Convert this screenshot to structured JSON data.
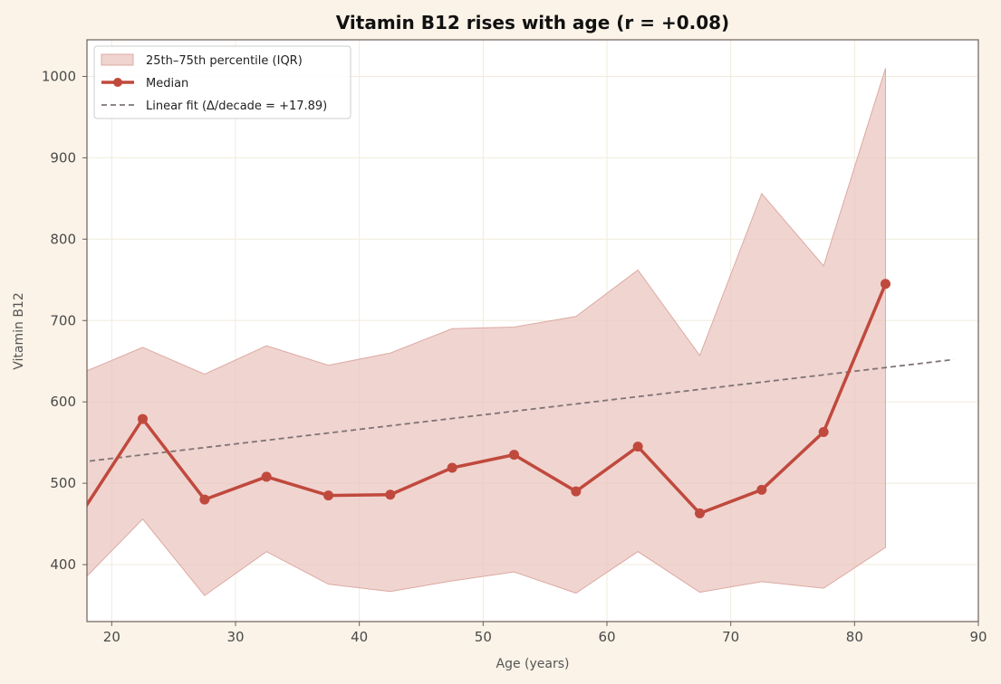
{
  "chart_data": {
    "type": "line",
    "title": "Vitamin B12 rises with age (r = +0.08)",
    "xlabel": "Age (years)",
    "ylabel": "Vitamin B12",
    "xlim": [
      18,
      90
    ],
    "ylim": [
      330,
      1045
    ],
    "xticks": [
      20,
      30,
      40,
      50,
      60,
      70,
      80,
      90
    ],
    "yticks": [
      400,
      500,
      600,
      700,
      800,
      900,
      1000
    ],
    "grid": true,
    "legend_position": "top-left",
    "colors": {
      "median": "#c0493d",
      "band": "#e9c2bc",
      "fit": "#7f7474",
      "background": "#fbf3e8",
      "plot_background": "#ffffff",
      "axes": "#6e5f5a"
    },
    "x": [
      17.5,
      22.5,
      27.5,
      32.5,
      37.5,
      42.5,
      47.5,
      52.5,
      57.5,
      62.5,
      67.5,
      72.5,
      77.5,
      82.5
    ],
    "series": [
      {
        "name": "25th–75th percentile (IQR)",
        "kind": "band",
        "lower": [
          378,
          456,
          362,
          416,
          376,
          367,
          380,
          391,
          365,
          416,
          366,
          379,
          371,
          421
        ],
        "upper": [
          635,
          667,
          634,
          669,
          645,
          660,
          690,
          692,
          705,
          762,
          657,
          856,
          767,
          1010
        ]
      },
      {
        "name": "Median",
        "kind": "line",
        "values": [
          462,
          579,
          480,
          508,
          485,
          486,
          519,
          535,
          490,
          545,
          463,
          492,
          563,
          745
        ]
      },
      {
        "name": "Linear fit (Δ/decade = +17.89)",
        "kind": "fit",
        "x": [
          17.5,
          88
        ],
        "values": [
          526,
          652
        ]
      }
    ]
  }
}
